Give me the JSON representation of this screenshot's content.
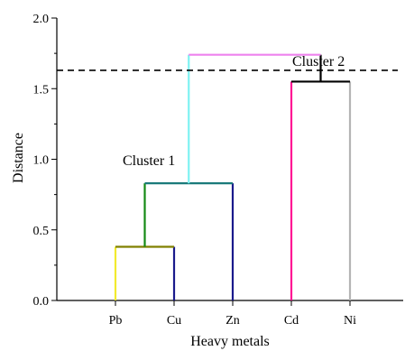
{
  "chart_data": {
    "type": "dendrogram",
    "title": "",
    "xlabel": "Heavy metals",
    "ylabel": "Distance",
    "ylim": [
      0,
      2.0
    ],
    "yticks": [
      "0.0",
      "0.5",
      "1.0",
      "1.5",
      "2.0"
    ],
    "leaves": [
      "Pb",
      "Cu",
      "Zn",
      "Cd",
      "Ni"
    ],
    "cut_distance": 1.63,
    "merges": [
      {
        "left": "Pb",
        "right": "Cu",
        "distance": 0.38,
        "left_color": "#f2ea2e",
        "right_color": "#1a1a8c",
        "bar_color": "#808000"
      },
      {
        "left": "Pb+Cu",
        "right": "Zn",
        "distance": 0.83,
        "left_color": "#148a14",
        "right_color": "#1a1a8c",
        "bar_color": "#1a7a7a"
      },
      {
        "left": "Cd",
        "right": "Ni",
        "distance": 1.55,
        "left_color": "#ff1493",
        "right_color": "#b4b4b4",
        "bar_color": "#000000"
      },
      {
        "left": "Pb+Cu+Zn",
        "right": "Cd+Ni",
        "distance": 1.74,
        "left_color": "#7ef2f2",
        "right_color": "#000000",
        "bar_color": "#ee82ee"
      }
    ],
    "annotations": [
      "Cluster 1",
      "Cluster 2"
    ]
  }
}
